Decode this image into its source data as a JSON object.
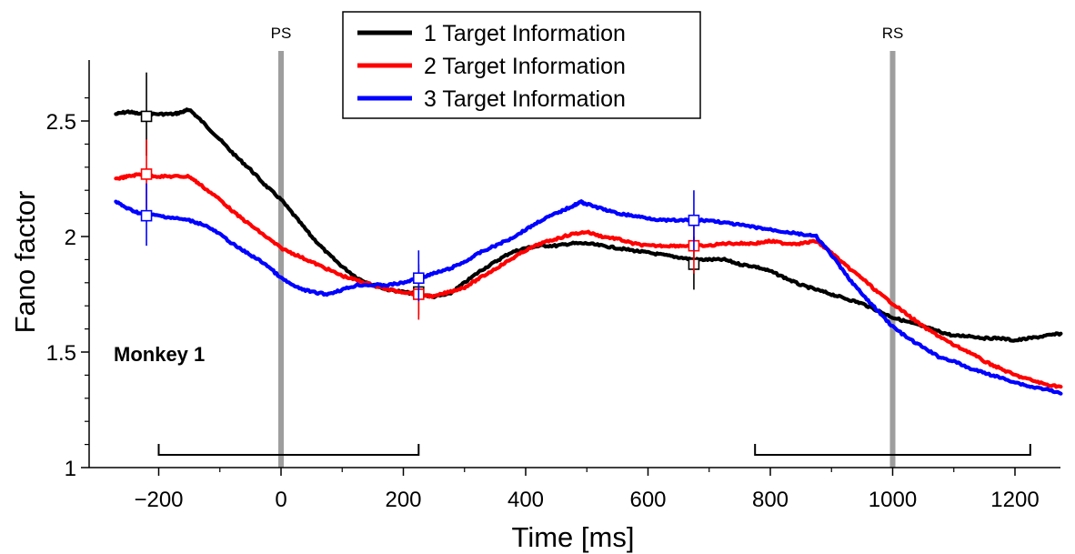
{
  "chart_data": {
    "type": "line",
    "xlabel": "Time [ms]",
    "ylabel": "Fano factor",
    "xlim": [
      -290,
      1285
    ],
    "ylim": [
      1,
      2.8
    ],
    "xticks": [
      -200,
      0,
      200,
      400,
      600,
      800,
      1000,
      1200
    ],
    "xtick_labels": [
      "−200",
      "0",
      "200",
      "400",
      "600",
      "800",
      "1000",
      "1200"
    ],
    "yticks": [
      1,
      1.5,
      2,
      2.5
    ],
    "ytick_labels": [
      "1",
      "1.5",
      "2",
      "2.5"
    ],
    "annotation": "Monkey 1",
    "legend_position": "top-center",
    "event_markers": [
      {
        "label": "PS",
        "x": 0,
        "color": "#9e9e9e"
      },
      {
        "label": "RS",
        "x": 1000,
        "color": "#9e9e9e"
      }
    ],
    "analysis_windows": [
      {
        "start": -200,
        "end": 225
      },
      {
        "start": 775,
        "end": 1225
      }
    ],
    "series": [
      {
        "name": "1 Target Information",
        "color": "#000000",
        "x": [
          -270,
          -250,
          -230,
          -200,
          -175,
          -160,
          -150,
          -130,
          -100,
          -75,
          -50,
          -25,
          0,
          25,
          50,
          75,
          100,
          125,
          150,
          175,
          200,
          225,
          250,
          275,
          300,
          325,
          350,
          375,
          400,
          425,
          450,
          475,
          500,
          525,
          550,
          575,
          600,
          625,
          650,
          675,
          700,
          725,
          750,
          775,
          800,
          825,
          850,
          875,
          900,
          925,
          950,
          975,
          1000,
          1025,
          1050,
          1075,
          1100,
          1125,
          1150,
          1175,
          1200,
          1225,
          1250,
          1275
        ],
        "y": [
          2.53,
          2.54,
          2.53,
          2.53,
          2.53,
          2.54,
          2.55,
          2.5,
          2.42,
          2.35,
          2.29,
          2.22,
          2.16,
          2.08,
          2.0,
          1.93,
          1.87,
          1.82,
          1.79,
          1.77,
          1.76,
          1.75,
          1.74,
          1.75,
          1.8,
          1.85,
          1.89,
          1.93,
          1.95,
          1.96,
          1.96,
          1.97,
          1.97,
          1.96,
          1.95,
          1.94,
          1.93,
          1.92,
          1.91,
          1.9,
          1.9,
          1.9,
          1.88,
          1.87,
          1.85,
          1.82,
          1.79,
          1.77,
          1.75,
          1.73,
          1.71,
          1.68,
          1.65,
          1.63,
          1.61,
          1.59,
          1.57,
          1.57,
          1.56,
          1.56,
          1.55,
          1.56,
          1.57,
          1.58
        ]
      },
      {
        "name": "2 Target Information",
        "color": "#ff0000",
        "x": [
          -270,
          -250,
          -230,
          -200,
          -175,
          -150,
          -130,
          -100,
          -75,
          -50,
          -25,
          0,
          25,
          50,
          75,
          100,
          125,
          150,
          175,
          200,
          225,
          250,
          275,
          300,
          325,
          350,
          375,
          400,
          425,
          450,
          475,
          500,
          525,
          550,
          575,
          600,
          625,
          650,
          675,
          700,
          725,
          750,
          775,
          800,
          825,
          850,
          875,
          900,
          925,
          950,
          975,
          1000,
          1025,
          1050,
          1075,
          1100,
          1125,
          1150,
          1175,
          1200,
          1225,
          1250,
          1275
        ],
        "y": [
          2.25,
          2.26,
          2.27,
          2.26,
          2.26,
          2.26,
          2.22,
          2.16,
          2.1,
          2.05,
          2.0,
          1.95,
          1.92,
          1.89,
          1.86,
          1.83,
          1.81,
          1.79,
          1.77,
          1.76,
          1.75,
          1.74,
          1.76,
          1.78,
          1.82,
          1.86,
          1.9,
          1.94,
          1.97,
          1.99,
          2.01,
          2.02,
          2.0,
          1.99,
          1.97,
          1.96,
          1.96,
          1.96,
          1.96,
          1.96,
          1.97,
          1.97,
          1.97,
          1.98,
          1.97,
          1.97,
          1.98,
          1.93,
          1.87,
          1.82,
          1.76,
          1.71,
          1.66,
          1.61,
          1.57,
          1.53,
          1.5,
          1.46,
          1.43,
          1.4,
          1.38,
          1.36,
          1.35
        ]
      },
      {
        "name": "3 Target Information",
        "color": "#0000ff",
        "x": [
          -270,
          -250,
          -230,
          -200,
          -175,
          -150,
          -125,
          -100,
          -75,
          -50,
          -25,
          0,
          25,
          50,
          75,
          100,
          125,
          150,
          175,
          200,
          225,
          250,
          275,
          300,
          325,
          350,
          375,
          400,
          425,
          450,
          475,
          490,
          500,
          525,
          550,
          575,
          600,
          625,
          650,
          675,
          700,
          725,
          750,
          775,
          800,
          825,
          850,
          875,
          900,
          925,
          950,
          975,
          1000,
          1025,
          1050,
          1075,
          1100,
          1125,
          1150,
          1175,
          1200,
          1225,
          1250,
          1275
        ],
        "y": [
          2.15,
          2.12,
          2.1,
          2.09,
          2.08,
          2.07,
          2.05,
          2.01,
          1.96,
          1.92,
          1.88,
          1.82,
          1.78,
          1.76,
          1.75,
          1.77,
          1.79,
          1.79,
          1.79,
          1.8,
          1.82,
          1.84,
          1.86,
          1.89,
          1.93,
          1.96,
          1.99,
          2.03,
          2.07,
          2.1,
          2.13,
          2.15,
          2.14,
          2.12,
          2.1,
          2.09,
          2.08,
          2.07,
          2.07,
          2.07,
          2.07,
          2.06,
          2.05,
          2.04,
          2.03,
          2.02,
          2.01,
          2.0,
          1.92,
          1.83,
          1.75,
          1.68,
          1.61,
          1.56,
          1.52,
          1.48,
          1.46,
          1.43,
          1.41,
          1.39,
          1.37,
          1.35,
          1.34,
          1.32
        ]
      }
    ],
    "error_bars": [
      {
        "series": 0,
        "x": -220,
        "y": 2.52,
        "low": 2.35,
        "high": 2.71
      },
      {
        "series": 1,
        "x": -220,
        "y": 2.27,
        "low": 2.12,
        "high": 2.42
      },
      {
        "series": 2,
        "x": -220,
        "y": 2.09,
        "low": 1.96,
        "high": 2.23
      },
      {
        "series": 0,
        "x": 225,
        "y": 1.76,
        "low": 1.66,
        "high": 1.88
      },
      {
        "series": 1,
        "x": 225,
        "y": 1.75,
        "low": 1.64,
        "high": 1.86
      },
      {
        "series": 2,
        "x": 225,
        "y": 1.82,
        "low": 1.72,
        "high": 1.94
      },
      {
        "series": 0,
        "x": 675,
        "y": 1.88,
        "low": 1.77,
        "high": 2.0
      },
      {
        "series": 1,
        "x": 675,
        "y": 1.96,
        "low": 1.84,
        "high": 2.08
      },
      {
        "series": 2,
        "x": 675,
        "y": 2.07,
        "low": 1.94,
        "high": 2.2
      }
    ]
  }
}
